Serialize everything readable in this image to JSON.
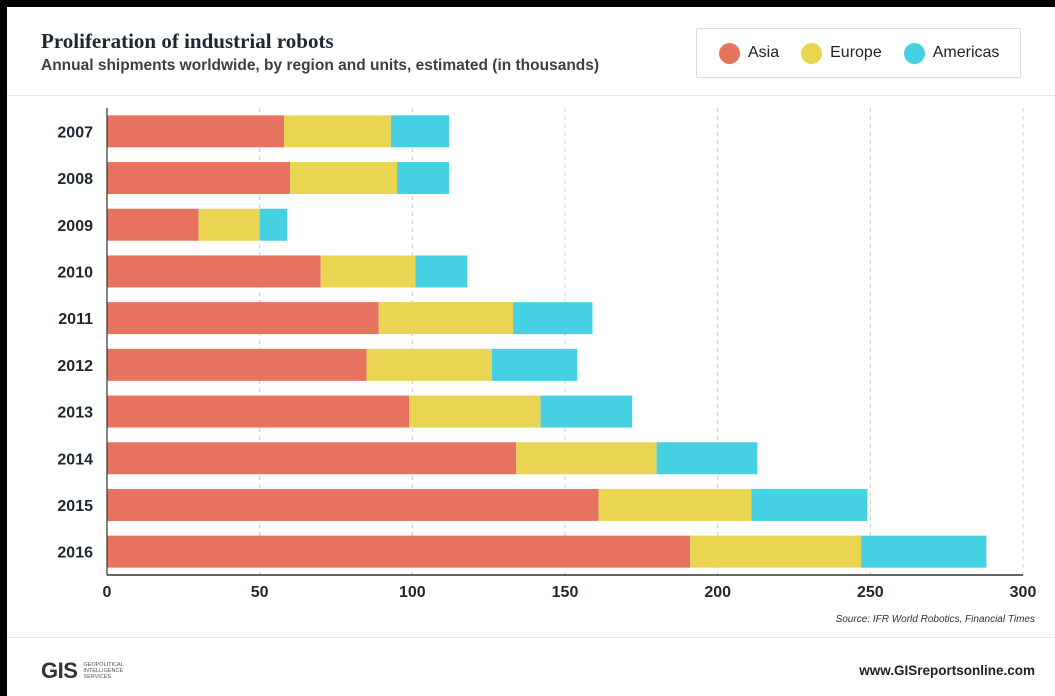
{
  "header": {
    "title": "Proliferation of industrial robots",
    "subtitle": "Annual shipments worldwide, by region and units, estimated (in thousands)"
  },
  "legend": [
    {
      "label": "Asia",
      "color": "#e5735f"
    },
    {
      "label": "Europe",
      "color": "#ead552"
    },
    {
      "label": "Americas",
      "color": "#46d1e3"
    }
  ],
  "footer": {
    "source": "Source: IFR World Robotics, Financial Times",
    "url": "www.GISreportsonline.com",
    "logo_mark": "GIS",
    "logo_line1": "Geopolitical",
    "logo_line2": "Intelligence",
    "logo_line3": "Services"
  },
  "chart_data": {
    "type": "bar",
    "orientation": "horizontal",
    "stacked": true,
    "title": "Proliferation of industrial robots",
    "subtitle": "Annual shipments worldwide, by region and units, estimated (in thousands)",
    "categories": [
      "2007",
      "2008",
      "2009",
      "2010",
      "2011",
      "2012",
      "2013",
      "2014",
      "2015",
      "2016"
    ],
    "series": [
      {
        "name": "Asia",
        "color": "#e5735f",
        "values": [
          58,
          60,
          30,
          70,
          89,
          85,
          99,
          134,
          161,
          191
        ]
      },
      {
        "name": "Europe",
        "color": "#ead552",
        "values": [
          35,
          35,
          20,
          31,
          44,
          41,
          43,
          46,
          50,
          56
        ]
      },
      {
        "name": "Americas",
        "color": "#46d1e3",
        "values": [
          19,
          17,
          9,
          17,
          26,
          28,
          30,
          33,
          38,
          41
        ]
      }
    ],
    "xlim": [
      0,
      300
    ],
    "xticks": [
      0,
      50,
      100,
      150,
      200,
      250,
      300
    ],
    "grid": "vertical dashed",
    "legend_position": "top-right"
  }
}
